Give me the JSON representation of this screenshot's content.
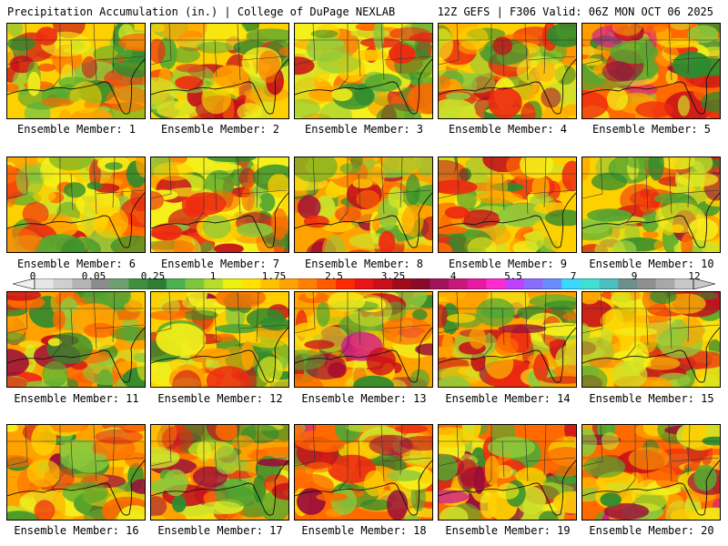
{
  "header": {
    "left": "Precipitation Accumulation (in.) | College of DuPage NEXLAB",
    "right": "12Z GEFS | F306 Valid: 06Z MON OCT 06 2025"
  },
  "panels": [
    {
      "label": "Ensemble Member: 1",
      "intensity": 0.55
    },
    {
      "label": "Ensemble Member: 2",
      "intensity": 0.45
    },
    {
      "label": "Ensemble Member: 3",
      "intensity": 0.35
    },
    {
      "label": "Ensemble Member: 4",
      "intensity": 0.55
    },
    {
      "label": "Ensemble Member: 5",
      "intensity": 0.75
    },
    {
      "label": "Ensemble Member: 6",
      "intensity": 0.5
    },
    {
      "label": "Ensemble Member: 7",
      "intensity": 0.4
    },
    {
      "label": "Ensemble Member: 8",
      "intensity": 0.6
    },
    {
      "label": "Ensemble Member: 9",
      "intensity": 0.5
    },
    {
      "label": "Ensemble Member: 10",
      "intensity": 0.55
    },
    {
      "label": "Ensemble Member: 11",
      "intensity": 0.6
    },
    {
      "label": "Ensemble Member: 12",
      "intensity": 0.55
    },
    {
      "label": "Ensemble Member: 13",
      "intensity": 0.7
    },
    {
      "label": "Ensemble Member: 14",
      "intensity": 0.65
    },
    {
      "label": "Ensemble Member: 15",
      "intensity": 0.55
    },
    {
      "label": "Ensemble Member: 16",
      "intensity": 0.6
    },
    {
      "label": "Ensemble Member: 17",
      "intensity": 0.65
    },
    {
      "label": "Ensemble Member: 18",
      "intensity": 0.75
    },
    {
      "label": "Ensemble Member: 19",
      "intensity": 0.75
    },
    {
      "label": "Ensemble Member: 20",
      "intensity": 0.8
    }
  ],
  "colorbar": {
    "labels": [
      "0",
      "0.05",
      "0.25",
      "1",
      "1.75",
      "2.5",
      "3.25",
      "4",
      "5.5",
      "7",
      "9",
      "12"
    ],
    "colors": [
      "#e6e6e6",
      "#cfcfcf",
      "#b4b4b4",
      "#8c8c8c",
      "#6f9f6f",
      "#3f8f3f",
      "#2e7d32",
      "#4caf50",
      "#7fc63c",
      "#b7dd2b",
      "#ecf00d",
      "#ffe200",
      "#ffc200",
      "#ffa300",
      "#ff8000",
      "#ff5a00",
      "#ff2a00",
      "#e8141a",
      "#c8101a",
      "#a00c1a",
      "#8a0a2a",
      "#a0145a",
      "#c8187c",
      "#e61aa0",
      "#ff2ad0",
      "#c040ff",
      "#8a6cff",
      "#6a8cff",
      "#3ad8ff",
      "#40e0d0",
      "#4bbfbf",
      "#6f8f8f",
      "#8f8f8f",
      "#a8a8a8",
      "#c8c8c8"
    ]
  }
}
